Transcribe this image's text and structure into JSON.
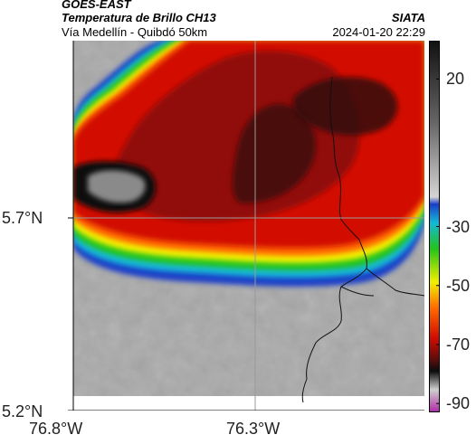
{
  "header": {
    "satellite": "GOES-EAST",
    "product": "Temperatura de Brillo CH13",
    "region": "Vía Medellín - Quibdó 50km",
    "org": "SIATA",
    "datetime": "2024-01-20 22:29"
  },
  "map": {
    "lat_labels": [
      "5.7°N",
      "5.2°N"
    ],
    "lon_labels": [
      "76.8°W",
      "76.3°W"
    ],
    "gridline_color": "#9a9a9a"
  },
  "colorbar": {
    "ticks": [
      "20",
      "-30",
      "-50",
      "-70",
      "-90"
    ],
    "tick_values": [
      20,
      -30,
      -50,
      -70,
      -90
    ],
    "range": [
      -93,
      33
    ],
    "colors": {
      "warm_gray": "#a8a8a8",
      "blue": "#1a3fc8",
      "cyan": "#12b8d8",
      "green": "#22c41a",
      "yellow": "#f2f000",
      "orange": "#ff6a00",
      "red": "#d20c00",
      "dark_red": "#5a0c0c",
      "black": "#0c0c0c",
      "magenta": "#b02aa8"
    }
  }
}
